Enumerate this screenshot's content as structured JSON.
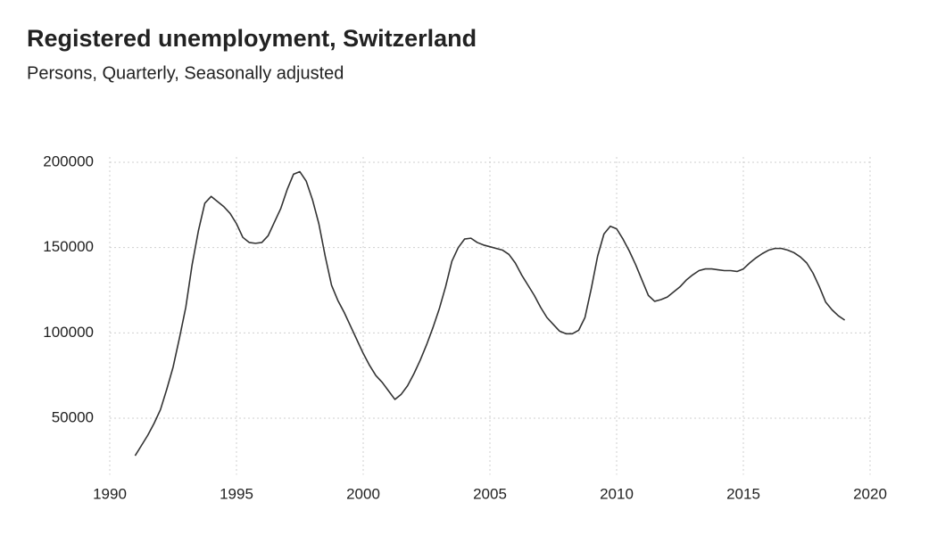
{
  "chart_data": {
    "type": "line",
    "title": "Registered unemployment, Switzerland",
    "subtitle": "Persons, Quarterly, Seasonally adjusted",
    "color": "#333333",
    "grid": true,
    "xlim": [
      1990,
      2020
    ],
    "xticks": [
      1990,
      1995,
      2000,
      2005,
      2010,
      2015,
      2020
    ],
    "ylim": [
      20000,
      200000
    ],
    "yticks": [
      50000,
      100000,
      150000,
      200000
    ],
    "x": [
      1991,
      1991.25,
      1991.5,
      1991.75,
      1992,
      1992.25,
      1992.5,
      1992.75,
      1993,
      1993.25,
      1993.5,
      1993.75,
      1994,
      1994.25,
      1994.5,
      1994.75,
      1995,
      1995.25,
      1995.5,
      1995.75,
      1996,
      1996.25,
      1996.5,
      1996.75,
      1997,
      1997.25,
      1997.5,
      1997.75,
      1998,
      1998.25,
      1998.5,
      1998.75,
      1999,
      1999.25,
      1999.5,
      1999.75,
      2000,
      2000.25,
      2000.5,
      2000.75,
      2001,
      2001.25,
      2001.5,
      2001.75,
      2002,
      2002.25,
      2002.5,
      2002.75,
      2003,
      2003.25,
      2003.5,
      2003.75,
      2004,
      2004.25,
      2004.5,
      2004.75,
      2005,
      2005.25,
      2005.5,
      2005.75,
      2006,
      2006.25,
      2006.5,
      2006.75,
      2007,
      2007.25,
      2007.5,
      2007.75,
      2008,
      2008.25,
      2008.5,
      2008.75,
      2009,
      2009.25,
      2009.5,
      2009.75,
      2010,
      2010.25,
      2010.5,
      2010.75,
      2011,
      2011.25,
      2011.5,
      2011.75,
      2012,
      2012.25,
      2012.5,
      2012.75,
      2013,
      2013.25,
      2013.5,
      2013.75,
      2014,
      2014.25,
      2014.5,
      2014.75,
      2015,
      2015.25,
      2015.5,
      2015.75,
      2016,
      2016.25,
      2016.5,
      2016.75,
      2017,
      2017.25,
      2017.5,
      2017.75,
      2018,
      2018.25,
      2018.5,
      2018.75,
      2019
    ],
    "values": [
      28000,
      34000,
      40000,
      47000,
      55000,
      67000,
      80000,
      97000,
      115000,
      140000,
      160000,
      176000,
      180000,
      177000,
      174000,
      170000,
      164000,
      156000,
      153000,
      152500,
      153000,
      157000,
      165000,
      173000,
      184000,
      193000,
      194500,
      189000,
      178000,
      164000,
      145000,
      128000,
      119000,
      112000,
      104000,
      96000,
      88000,
      81000,
      75000,
      71000,
      66000,
      61000,
      64000,
      69000,
      76000,
      84000,
      93000,
      103000,
      114000,
      127000,
      142000,
      150000,
      155000,
      155500,
      153000,
      151500,
      150500,
      149500,
      148500,
      146000,
      141000,
      134000,
      128000,
      122000,
      115000,
      109000,
      105000,
      101000,
      99500,
      99500,
      101500,
      109000,
      126000,
      145000,
      158000,
      162500,
      161000,
      155000,
      148000,
      140000,
      131000,
      122000,
      118500,
      119500,
      121000,
      124000,
      127000,
      131000,
      134000,
      136500,
      137500,
      137500,
      137000,
      136500,
      136500,
      136000,
      137500,
      141000,
      144000,
      146500,
      148500,
      149500,
      149500,
      148500,
      147000,
      144500,
      141000,
      135000,
      127000,
      118000,
      113500,
      110000,
      107500
    ]
  }
}
